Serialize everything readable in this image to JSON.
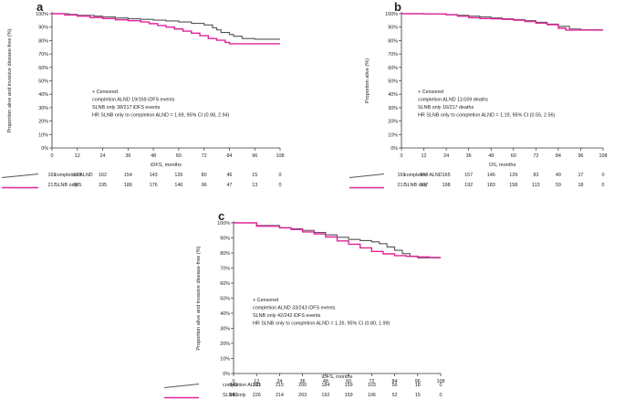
{
  "chart_data": [
    {
      "type": "line",
      "panel_label": "a",
      "xlabel": "iDFS, months",
      "ylabel": "Proportion alive and invasive disease-free (%)",
      "xlim": [
        0,
        108
      ],
      "ylim": [
        0,
        100
      ],
      "x_ticks": [
        "0",
        "12",
        "24",
        "36",
        "48",
        "60",
        "72",
        "84",
        "96",
        "108"
      ],
      "y_ticks": [
        "0%",
        "10%",
        "20%",
        "30%",
        "40%",
        "50%",
        "60%",
        "70%",
        "80%",
        "90%",
        "100%"
      ],
      "annotation": [
        "+ Censored",
        "completion ALND  19/169 iDFS events",
        "SLNB only  38/217 iDFS events",
        "HR SLNB only to completion ALND = 1.69, 95% CI (0.98, 2.94)"
      ],
      "series": [
        {
          "name": "completion ALND",
          "color": "#555555",
          "x": [
            0,
            8,
            12,
            20,
            24,
            30,
            36,
            42,
            48,
            54,
            60,
            66,
            72,
            76,
            78,
            80,
            84,
            86,
            90,
            96,
            102,
            108
          ],
          "y": [
            100,
            99.5,
            98.8,
            98.2,
            97.6,
            96.8,
            96.2,
            95.8,
            95.2,
            94.6,
            93.8,
            92.8,
            91.6,
            89.5,
            88,
            86,
            84.5,
            83.2,
            81.5,
            81,
            81,
            81
          ]
        },
        {
          "name": "SLNB only",
          "color": "#e0249a",
          "x": [
            0,
            6,
            12,
            18,
            24,
            30,
            36,
            42,
            46,
            50,
            54,
            58,
            62,
            66,
            70,
            74,
            78,
            82,
            84,
            90,
            96,
            102,
            108
          ],
          "y": [
            100,
            99,
            98.2,
            97.2,
            96.4,
            95.5,
            94.8,
            93.8,
            92.6,
            91.2,
            90,
            88.6,
            87,
            85.5,
            83.6,
            81.5,
            80.2,
            78.6,
            77.6,
            77.6,
            77.6,
            77.6,
            77.6
          ]
        }
      ],
      "risk_table": {
        "rows": [
          {
            "label": "completion ALND",
            "values": [
              "169",
              "165",
              "162",
              "154",
              "143",
              "126",
              "80",
              "46",
              "15",
              "0"
            ]
          },
          {
            "label": "SLNB only",
            "values": [
              "217",
              "205",
              "195",
              "186",
              "176",
              "146",
              "96",
              "47",
              "13",
              "0"
            ]
          }
        ]
      }
    },
    {
      "type": "line",
      "panel_label": "b",
      "xlabel": "OS, months",
      "ylabel": "Proportion alive (%)",
      "xlim": [
        0,
        108
      ],
      "ylim": [
        0,
        100
      ],
      "x_ticks": [
        "0",
        "12",
        "24",
        "36",
        "48",
        "60",
        "72",
        "84",
        "96",
        "108"
      ],
      "y_ticks": [
        "0%",
        "10%",
        "20%",
        "30%",
        "40%",
        "50%",
        "60%",
        "70%",
        "80%",
        "90%",
        "100%"
      ],
      "annotation": [
        "+ Censored",
        "completion ALND  11/169 deaths",
        "SLNB only  16/217 deaths",
        "HR SLNB only to completion ALND = 1.19, 95% CI (0.55, 2.56)"
      ],
      "series": [
        {
          "name": "completion ALND",
          "color": "#555555",
          "x": [
            0,
            12,
            24,
            30,
            36,
            42,
            48,
            54,
            60,
            66,
            72,
            78,
            84,
            90,
            96,
            102,
            108
          ],
          "y": [
            100,
            99.8,
            99.4,
            98.8,
            98.2,
            97.6,
            96.8,
            96.2,
            95.6,
            94.8,
            93.6,
            92.2,
            90.6,
            88.6,
            88,
            88,
            88
          ]
        },
        {
          "name": "SLNB only",
          "color": "#e0249a",
          "x": [
            0,
            12,
            24,
            30,
            36,
            42,
            48,
            54,
            60,
            66,
            72,
            78,
            84,
            88,
            96,
            102,
            108
          ],
          "y": [
            100,
            99.8,
            99.2,
            98.2,
            97,
            96.4,
            96.2,
            95.8,
            95.2,
            94.2,
            93,
            91.8,
            89.2,
            87.8,
            87.8,
            87.8,
            87.8
          ]
        }
      ],
      "risk_table": {
        "rows": [
          {
            "label": "completion ALND",
            "values": [
              "169",
              "167",
              "165",
              "157",
              "146",
              "129",
              "83",
              "49",
              "17",
              "0"
            ]
          },
          {
            "label": "SLNB only",
            "values": [
              "217",
              "207",
              "198",
              "192",
              "183",
              "158",
              "113",
              "59",
              "18",
              "0"
            ]
          }
        ]
      }
    },
    {
      "type": "line",
      "panel_label": "c",
      "xlabel": "iDFS, months",
      "ylabel": "Proportion alive and invasive disease-free (%)",
      "xlim": [
        0,
        108
      ],
      "ylim": [
        0,
        100
      ],
      "x_ticks": [
        "0",
        "12",
        "24",
        "36",
        "48",
        "60",
        "72",
        "84",
        "96",
        "108"
      ],
      "y_ticks": [
        "0%",
        "10%",
        "20%",
        "30%",
        "40%",
        "50%",
        "60%",
        "70%",
        "80%",
        "90%",
        "100%"
      ],
      "annotation": [
        "+ Censored",
        "completion ALND  33/243 iDFS events",
        "SLNB only  42/242 iDFS events",
        "HR SLNB only to completion ALND = 1.26, 95% CI (0.80, 1.99)"
      ],
      "series": [
        {
          "name": "completion ALND",
          "color": "#555555",
          "x": [
            0,
            12,
            24,
            30,
            36,
            42,
            48,
            54,
            60,
            66,
            72,
            76,
            80,
            84,
            88,
            92,
            96,
            102,
            108
          ],
          "y": [
            100,
            98.2,
            96.8,
            96,
            95,
            93.6,
            92,
            90.4,
            89,
            88.2,
            87.4,
            86.2,
            84,
            81.8,
            79.6,
            77.6,
            76.8,
            76.8,
            76.8
          ]
        },
        {
          "name": "SLNB only",
          "color": "#e0249a",
          "x": [
            0,
            12,
            24,
            30,
            36,
            42,
            48,
            54,
            60,
            66,
            72,
            78,
            84,
            90,
            96,
            102,
            108
          ],
          "y": [
            100,
            97.8,
            96.6,
            95.6,
            94,
            92.6,
            90.6,
            88,
            85.8,
            83.4,
            81,
            79.4,
            78.2,
            77.8,
            77.4,
            77,
            77
          ]
        }
      ],
      "risk_table": {
        "rows": [
          {
            "label": "completion ALND",
            "values": [
              "243",
              "221",
              "215",
              "200",
              "184",
              "159",
              "103",
              "56",
              "18",
              "0"
            ]
          },
          {
            "label": "SLNB only",
            "values": [
              "242",
              "226",
              "214",
              "203",
              "192",
              "159",
              "106",
              "52",
              "15",
              "0"
            ]
          }
        ]
      }
    }
  ]
}
